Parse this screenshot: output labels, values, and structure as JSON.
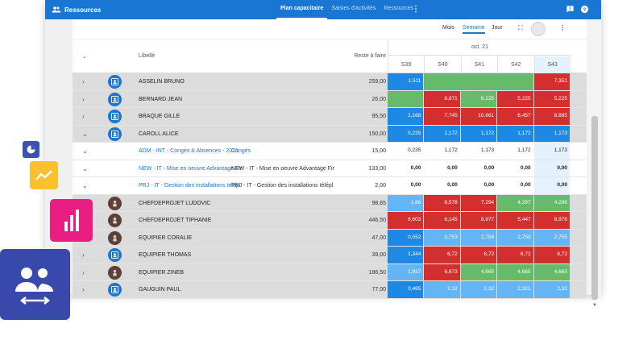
{
  "app": {
    "title": "Ressources"
  },
  "tabs": [
    {
      "label": "Plan capacitaire",
      "active": true
    },
    {
      "label": "Saisies d'activités",
      "active": false
    },
    {
      "label": "Ressources",
      "active": false
    }
  ],
  "view": {
    "buttons": [
      {
        "label": "Mois",
        "active": false
      },
      {
        "label": "Semaine",
        "active": true
      },
      {
        "label": "Jour",
        "active": false
      }
    ]
  },
  "header": {
    "libelle": "Libellé",
    "reste": "Reste à faire",
    "month": "oct. 21",
    "weeks": [
      "S39",
      "S40",
      "S41",
      "S42",
      "S43"
    ]
  },
  "colors": {
    "blue": "#1e88e5",
    "lightblue": "#64b5f6",
    "red": "#d32f2f",
    "green": "#66bb6a",
    "accent": "#1976d2"
  },
  "rows": [
    {
      "type": "res",
      "chevron": "›",
      "avatar": "contact",
      "label": "ASSELIN BRUNO",
      "reste": "259,00",
      "cells": [
        {
          "v": "1,511",
          "c": "blue"
        },
        {
          "v": "",
          "c": "green",
          "merge": 3
        },
        {
          "v": "7,351",
          "c": "red"
        }
      ]
    },
    {
      "type": "res",
      "chevron": "›",
      "avatar": "contact",
      "label": "BERNARD JEAN",
      "reste": "26,00",
      "cells": [
        {
          "v": "",
          "c": "green"
        },
        {
          "v": "6,871",
          "c": "red"
        },
        {
          "v": "6,225",
          "c": "green"
        },
        {
          "v": "5,225",
          "c": "red"
        },
        {
          "v": "5,225",
          "c": "red"
        }
      ]
    },
    {
      "type": "res",
      "chevron": "›",
      "avatar": "contact",
      "label": "BRAQUE GILLE",
      "reste": "95,50",
      "cells": [
        {
          "v": "1,168",
          "c": "blue"
        },
        {
          "v": "7,745",
          "c": "red"
        },
        {
          "v": "10,661",
          "c": "red"
        },
        {
          "v": "6,457",
          "c": "red"
        },
        {
          "v": "8,885",
          "c": "red"
        }
      ]
    },
    {
      "type": "res",
      "chevron": "⌄",
      "avatar": "contact",
      "label": "CAROLL ALICE",
      "reste": "150,00",
      "cells": [
        {
          "v": "0,235",
          "c": "blue"
        },
        {
          "v": "1,172",
          "c": "blue"
        },
        {
          "v": "1,172",
          "c": "blue"
        },
        {
          "v": "1,172",
          "c": "blue"
        },
        {
          "v": "1,173",
          "c": "blue"
        }
      ]
    },
    {
      "type": "sub",
      "label": "ADM - INT - Congés & Absences - 2021",
      "desc": "Congés",
      "reste": "15,00",
      "cells": [
        {
          "v": "0,235",
          "c": ""
        },
        {
          "v": "1,172",
          "c": ""
        },
        {
          "v": "1,173",
          "c": ""
        },
        {
          "v": "1,172",
          "c": ""
        },
        {
          "v": "1,173",
          "c": ""
        }
      ]
    },
    {
      "type": "sub",
      "label": "NEW - IT - Mise en oeuvre Advantage Fir",
      "desc": "NEW - IT - Mise en oeuvre Advantage Fir",
      "reste": "133,00",
      "cells": [
        {
          "v": "0,00",
          "c": "",
          "b": true
        },
        {
          "v": "0,00",
          "c": "",
          "b": true
        },
        {
          "v": "0,00",
          "c": "",
          "b": true
        },
        {
          "v": "0,00",
          "c": "",
          "b": true
        },
        {
          "v": "0,00",
          "c": "",
          "b": true
        }
      ]
    },
    {
      "type": "sub",
      "label": "PRJ - IT - Gestion des installations télépl",
      "desc": "PRJ - IT - Gestion des installations télépl",
      "reste": "2,00",
      "cells": [
        {
          "v": "0,00",
          "c": "",
          "b": true
        },
        {
          "v": "0,00",
          "c": "",
          "b": true
        },
        {
          "v": "0,00",
          "c": "",
          "b": true
        },
        {
          "v": "0,00",
          "c": "",
          "b": true
        },
        {
          "v": "0,00",
          "c": "",
          "b": true
        }
      ]
    },
    {
      "type": "res",
      "chevron": "",
      "avatar": "person",
      "label": "CHEFDEPROJET LUDOVIC",
      "reste": "98,65",
      "cells": [
        {
          "v": "1,86",
          "c": "lightblue"
        },
        {
          "v": "8,578",
          "c": "red"
        },
        {
          "v": "7,294",
          "c": "red"
        },
        {
          "v": "4,297",
          "c": "green"
        },
        {
          "v": "4,296",
          "c": "green"
        }
      ]
    },
    {
      "type": "res",
      "chevron": "",
      "avatar": "person",
      "label": "CHEFDEPROJET TIPHANIE",
      "reste": "446,50",
      "cells": [
        {
          "v": "6,603",
          "c": "red"
        },
        {
          "v": "6,145",
          "c": "red"
        },
        {
          "v": "8,977",
          "c": "red"
        },
        {
          "v": "5,447",
          "c": "red"
        },
        {
          "v": "8,976",
          "c": "red"
        }
      ]
    },
    {
      "type": "res",
      "chevron": "›",
      "avatar": "person",
      "label": "EQUIPIER CORALIE",
      "reste": "47,00",
      "cells": [
        {
          "v": "0,552",
          "c": "blue"
        },
        {
          "v": "2,753",
          "c": "lightblue"
        },
        {
          "v": "2,754",
          "c": "lightblue"
        },
        {
          "v": "2,753",
          "c": "lightblue"
        },
        {
          "v": "2,755",
          "c": "lightblue"
        }
      ]
    },
    {
      "type": "res",
      "chevron": "›",
      "avatar": "contact",
      "label": "EQUIPIER THOMAS",
      "reste": "39,00",
      "cells": [
        {
          "v": "1,344",
          "c": "blue"
        },
        {
          "v": "6,72",
          "c": "red"
        },
        {
          "v": "6,72",
          "c": "red"
        },
        {
          "v": "6,72",
          "c": "red"
        },
        {
          "v": "6,72",
          "c": "red"
        }
      ]
    },
    {
      "type": "res",
      "chevron": "›",
      "avatar": "person",
      "label": "EQUIPIER ZINEB",
      "reste": "186,50",
      "cells": [
        {
          "v": "1,937",
          "c": "lightblue"
        },
        {
          "v": "6,873",
          "c": "red"
        },
        {
          "v": "4,665",
          "c": "green"
        },
        {
          "v": "4,665",
          "c": "green"
        },
        {
          "v": "4,665",
          "c": "green"
        }
      ]
    },
    {
      "type": "res",
      "chevron": "›",
      "avatar": "contact",
      "label": "GAUGUIN PAUL",
      "reste": "77,00",
      "cells": [
        {
          "v": "0,465",
          "c": "blue"
        },
        {
          "v": "2,32",
          "c": "lightblue"
        },
        {
          "v": "2,32",
          "c": "lightblue"
        },
        {
          "v": "2,321",
          "c": "lightblue"
        },
        {
          "v": "2,32",
          "c": "lightblue"
        }
      ]
    }
  ],
  "widgets": {
    "pie": "pie-chart-icon",
    "trend": "trending-up-icon",
    "bars": "bar-chart-icon",
    "people": "people-swap-icon"
  }
}
